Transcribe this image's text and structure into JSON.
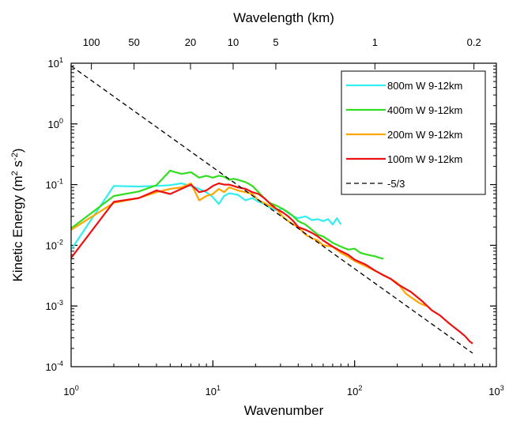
{
  "chart_data": {
    "type": "line",
    "xlabel": "Wavenumber",
    "ylabel_main": "Kinetic Energy (m",
    "ylabel_sup1": "2",
    "ylabel_mid": " s",
    "ylabel_sup2": "-2",
    "ylabel_end": ")",
    "top_xlabel": "Wavelength (km)",
    "xscale": "log",
    "yscale": "log",
    "xlim": [
      1,
      1000
    ],
    "ylim": [
      0.0001,
      10
    ],
    "x_ticks": [
      {
        "value": 1,
        "base": "10",
        "exp": "0"
      },
      {
        "value": 10,
        "base": "10",
        "exp": "1"
      },
      {
        "value": 100,
        "base": "10",
        "exp": "2"
      },
      {
        "value": 1000,
        "base": "10",
        "exp": "3"
      }
    ],
    "y_ticks": [
      {
        "value": 0.0001,
        "base": "10",
        "exp": "-4"
      },
      {
        "value": 0.001,
        "base": "10",
        "exp": "-3"
      },
      {
        "value": 0.01,
        "base": "10",
        "exp": "-2"
      },
      {
        "value": 0.1,
        "base": "10",
        "exp": "-1"
      },
      {
        "value": 1,
        "base": "10",
        "exp": "0"
      },
      {
        "value": 10,
        "base": "10",
        "exp": "1"
      }
    ],
    "top_ticks": [
      {
        "label": "100",
        "wavenumber": 1.39
      },
      {
        "label": "50",
        "wavenumber": 2.78
      },
      {
        "label": "20",
        "wavenumber": 6.95
      },
      {
        "label": "10",
        "wavenumber": 13.9
      },
      {
        "label": "5",
        "wavenumber": 27.8
      },
      {
        "label": "1",
        "wavenumber": 139
      },
      {
        "label": "0.2",
        "wavenumber": 695
      }
    ],
    "legend_position": "top-right",
    "series": [
      {
        "name": "800m W 9-12km",
        "color": "#33eeee",
        "x": [
          1,
          2,
          3,
          4,
          5,
          6,
          7,
          8,
          9,
          10,
          11,
          12,
          13,
          14,
          15,
          17,
          19,
          21,
          23,
          25,
          28,
          31,
          34,
          37,
          40,
          45,
          50,
          55,
          60,
          65,
          70,
          75,
          80
        ],
        "y": [
          0.0085,
          0.095,
          0.093,
          0.095,
          0.098,
          0.105,
          0.095,
          0.085,
          0.075,
          0.062,
          0.048,
          0.065,
          0.072,
          0.07,
          0.068,
          0.055,
          0.06,
          0.052,
          0.048,
          0.042,
          0.038,
          0.04,
          0.034,
          0.03,
          0.028,
          0.03,
          0.026,
          0.027,
          0.025,
          0.027,
          0.022,
          0.028,
          0.022
        ]
      },
      {
        "name": "400m W 9-12km",
        "color": "#33dd22",
        "x": [
          1,
          2,
          3,
          4,
          5,
          6,
          7,
          8,
          9,
          10,
          11,
          12,
          13,
          14,
          15,
          17,
          19,
          21,
          23,
          25,
          28,
          31,
          34,
          37,
          40,
          45,
          50,
          55,
          60,
          70,
          80,
          90,
          100,
          110,
          120,
          130,
          140,
          150,
          160
        ],
        "y": [
          0.019,
          0.065,
          0.077,
          0.098,
          0.17,
          0.15,
          0.16,
          0.13,
          0.14,
          0.13,
          0.14,
          0.135,
          0.12,
          0.125,
          0.12,
          0.11,
          0.095,
          0.075,
          0.06,
          0.05,
          0.045,
          0.04,
          0.035,
          0.03,
          0.025,
          0.022,
          0.018,
          0.015,
          0.014,
          0.011,
          0.0095,
          0.0085,
          0.0088,
          0.0075,
          0.0071,
          0.0068,
          0.0066,
          0.0062,
          0.006
        ]
      },
      {
        "name": "200m W 9-12km",
        "color": "#ffa500",
        "x": [
          1,
          2,
          3,
          4,
          5,
          6,
          7,
          8,
          9,
          10,
          11,
          12,
          13,
          14,
          15,
          17,
          19,
          21,
          23,
          25,
          28,
          31,
          34,
          37,
          40,
          45,
          50,
          55,
          60,
          70,
          80,
          90,
          100,
          120,
          140,
          160,
          180,
          200,
          230,
          260,
          290,
          320
        ],
        "y": [
          0.018,
          0.05,
          0.06,
          0.075,
          0.085,
          0.09,
          0.105,
          0.055,
          0.065,
          0.07,
          0.085,
          0.075,
          0.09,
          0.085,
          0.08,
          0.075,
          0.07,
          0.055,
          0.05,
          0.045,
          0.04,
          0.03,
          0.025,
          0.022,
          0.02,
          0.015,
          0.013,
          0.012,
          0.01,
          0.0095,
          0.0075,
          0.0065,
          0.0055,
          0.0045,
          0.0038,
          0.0032,
          0.0028,
          0.0024,
          0.0016,
          0.0013,
          0.0011,
          0.001
        ]
      },
      {
        "name": "100m W 9-12km",
        "color": "#ee1111",
        "x": [
          1,
          2,
          3,
          4,
          5,
          6,
          7,
          8,
          9,
          10,
          11,
          12,
          13,
          14,
          15,
          17,
          19,
          21,
          23,
          25,
          28,
          31,
          34,
          37,
          40,
          45,
          50,
          55,
          60,
          70,
          80,
          90,
          100,
          120,
          140,
          160,
          180,
          200,
          250,
          300,
          350,
          400,
          450,
          500,
          550,
          600,
          650,
          680
        ],
        "y": [
          0.0062,
          0.052,
          0.06,
          0.08,
          0.07,
          0.085,
          0.1,
          0.075,
          0.08,
          0.095,
          0.105,
          0.1,
          0.1,
          0.095,
          0.09,
          0.085,
          0.075,
          0.07,
          0.06,
          0.05,
          0.04,
          0.035,
          0.03,
          0.025,
          0.02,
          0.018,
          0.016,
          0.014,
          0.012,
          0.0095,
          0.008,
          0.007,
          0.0058,
          0.0048,
          0.0038,
          0.0032,
          0.0028,
          0.0023,
          0.0017,
          0.0012,
          0.00085,
          0.0007,
          0.00055,
          0.00045,
          0.00038,
          0.00032,
          0.00026,
          0.00024
        ]
      },
      {
        "name": "-5/3",
        "color": "#000000",
        "dashed": true,
        "x": [
          1,
          680
        ],
        "y": [
          9.0,
          0.000167
        ]
      }
    ]
  }
}
